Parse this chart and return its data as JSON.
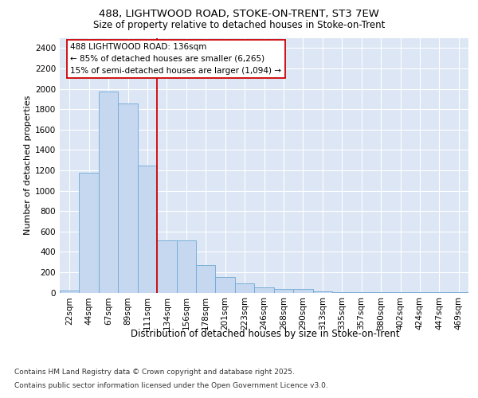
{
  "title_line1": "488, LIGHTWOOD ROAD, STOKE-ON-TRENT, ST3 7EW",
  "title_line2": "Size of property relative to detached houses in Stoke-on-Trent",
  "xlabel": "Distribution of detached houses by size in Stoke-on-Trent",
  "ylabel": "Number of detached properties",
  "categories": [
    "22sqm",
    "44sqm",
    "67sqm",
    "89sqm",
    "111sqm",
    "134sqm",
    "156sqm",
    "178sqm",
    "201sqm",
    "223sqm",
    "246sqm",
    "268sqm",
    "290sqm",
    "313sqm",
    "335sqm",
    "357sqm",
    "380sqm",
    "402sqm",
    "424sqm",
    "447sqm",
    "469sqm"
  ],
  "values": [
    22,
    1175,
    1975,
    1855,
    1245,
    515,
    515,
    270,
    155,
    90,
    50,
    35,
    35,
    15,
    5,
    5,
    3,
    2,
    1,
    1,
    1
  ],
  "bar_color": "#c5d8f0",
  "bar_edge_color": "#6fa8d4",
  "vline_color": "#cc0000",
  "vline_x": 4.5,
  "annotation_text": "488 LIGHTWOOD ROAD: 136sqm\n← 85% of detached houses are smaller (6,265)\n15% of semi-detached houses are larger (1,094) →",
  "ylim": [
    0,
    2500
  ],
  "yticks": [
    0,
    200,
    400,
    600,
    800,
    1000,
    1200,
    1400,
    1600,
    1800,
    2000,
    2200,
    2400
  ],
  "plot_bg_color": "#dce6f5",
  "grid_color": "#ffffff",
  "footer_line1": "Contains HM Land Registry data © Crown copyright and database right 2025.",
  "footer_line2": "Contains public sector information licensed under the Open Government Licence v3.0."
}
